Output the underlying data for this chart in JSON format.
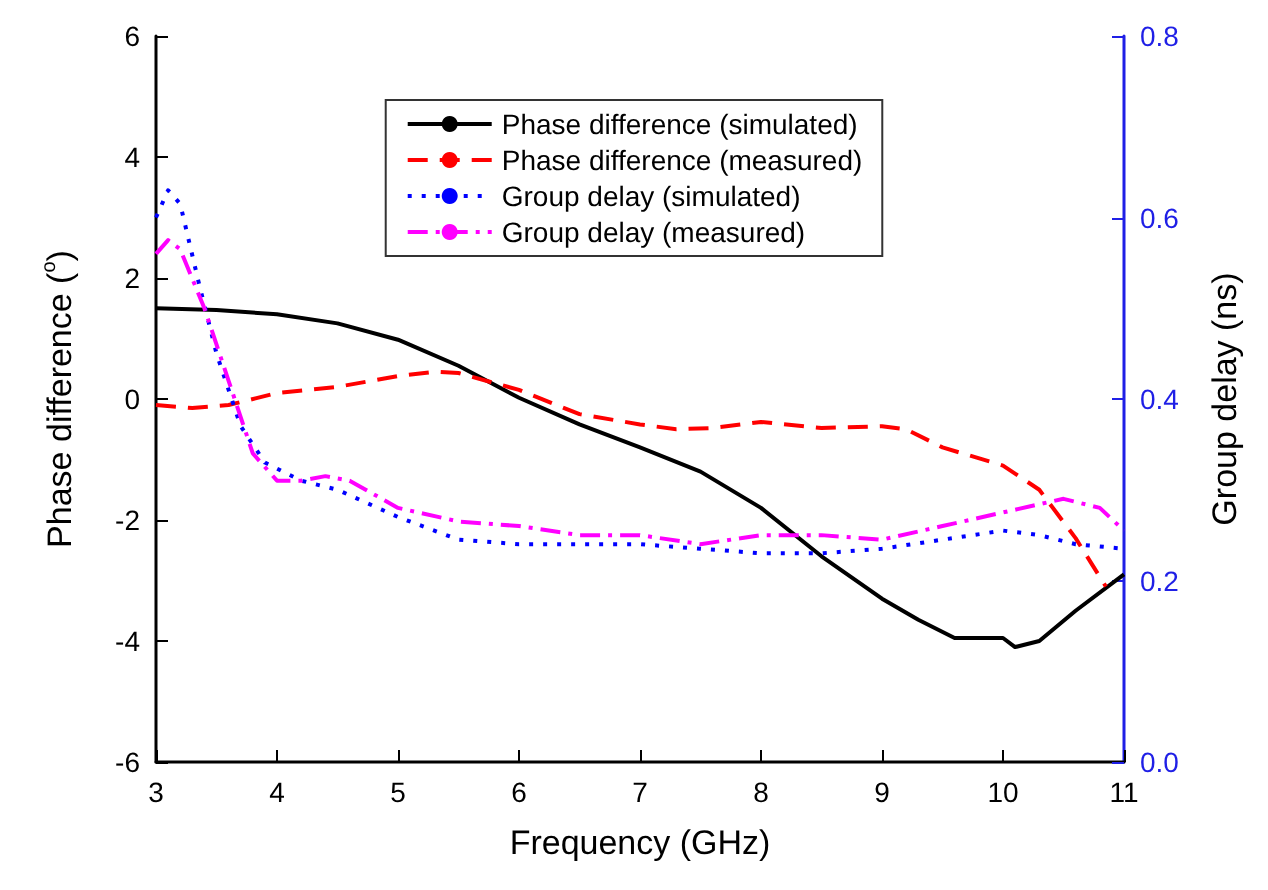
{
  "chart_data": {
    "type": "line",
    "xlabel": "Frequency (GHz)",
    "ylabel": "Phase difference ($^{o}$)",
    "y2label": "Group delay (ns)",
    "xlim": [
      3,
      11
    ],
    "xticks": [
      3,
      4,
      5,
      6,
      7,
      8,
      9,
      10,
      11
    ],
    "ylim": [
      -6,
      6
    ],
    "yticks": [
      -6,
      -4,
      -2,
      0,
      2,
      4,
      6
    ],
    "y2lim": [
      0,
      0.8
    ],
    "y2ticks": [
      {
        "value": 0,
        "label": "0.0"
      },
      0.2,
      0.4,
      0.6,
      0.8
    ],
    "grid": false,
    "legend": "top",
    "marker": "none",
    "series": [
      {
        "name": "Phase difference (simulated)",
        "color": "#000000",
        "line_style": "solid",
        "x": [
          3,
          3.5,
          4,
          4.5,
          5,
          5.5,
          6,
          6.5,
          7,
          7.5,
          8,
          8.5,
          9,
          9.3,
          9.6,
          10,
          10.1,
          10.3,
          10.6,
          11
        ],
        "values": [
          1.5,
          1.47,
          1.4,
          1.25,
          0.98,
          0.55,
          0.02,
          -0.42,
          -0.8,
          -1.2,
          -1.8,
          -2.6,
          -3.3,
          -3.65,
          -3.95,
          -3.95,
          -4.1,
          -4.0,
          -3.5,
          -2.9
        ]
      },
      {
        "name": "Phase difference (measured)",
        "color": "#ff0000",
        "line_style": "dashed",
        "x": [
          3,
          3.3,
          3.6,
          4,
          4.5,
          5,
          5.3,
          5.5,
          6,
          6.5,
          7,
          7.3,
          7.6,
          8,
          8.5,
          9,
          9.2,
          9.5,
          10,
          10.3,
          10.6,
          10.85
        ],
        "values": [
          -0.1,
          -0.15,
          -0.1,
          0.1,
          0.2,
          0.38,
          0.45,
          0.43,
          0.15,
          -0.25,
          -0.42,
          -0.5,
          -0.48,
          -0.38,
          -0.48,
          -0.45,
          -0.5,
          -0.8,
          -1.1,
          -1.5,
          -2.3,
          -3.1
        ]
      },
      {
        "name": "Group delay (simulated)",
        "color": "#0000ff",
        "line_style": "dotted",
        "axis": "y2",
        "x": [
          3,
          3.1,
          3.2,
          3.35,
          3.5,
          3.7,
          3.9,
          4.2,
          4.5,
          5,
          5.5,
          6,
          7,
          7.5,
          8,
          8.5,
          9,
          9.5,
          10,
          10.3,
          10.6,
          11
        ],
        "values": [
          0.6,
          0.63,
          0.615,
          0.53,
          0.45,
          0.37,
          0.33,
          0.31,
          0.3,
          0.27,
          0.245,
          0.24,
          0.24,
          0.235,
          0.23,
          0.23,
          0.235,
          0.245,
          0.255,
          0.25,
          0.24,
          0.235
        ]
      },
      {
        "name": "Group delay (measured)",
        "color": "#ff00ff",
        "line_style": "dashdot",
        "axis": "y2",
        "x": [
          3,
          3.1,
          3.2,
          3.4,
          3.6,
          3.8,
          4,
          4.2,
          4.4,
          4.6,
          5,
          5.5,
          6,
          6.5,
          7,
          7.5,
          8,
          8.5,
          9,
          9.5,
          10,
          10.5,
          10.8,
          11
        ],
        "values": [
          0.56,
          0.575,
          0.565,
          0.5,
          0.42,
          0.34,
          0.31,
          0.31,
          0.315,
          0.31,
          0.28,
          0.265,
          0.26,
          0.25,
          0.25,
          0.24,
          0.25,
          0.25,
          0.245,
          0.26,
          0.275,
          0.29,
          0.28,
          0.255
        ]
      }
    ]
  }
}
